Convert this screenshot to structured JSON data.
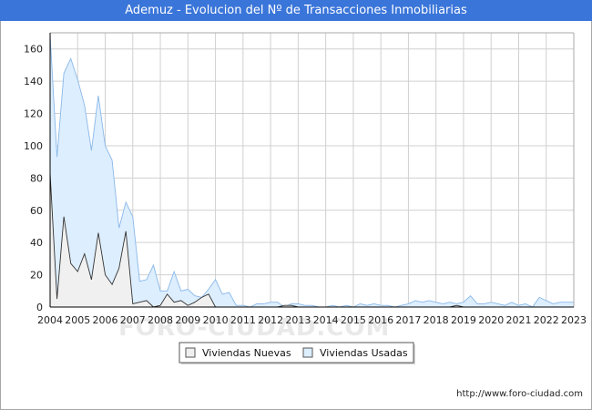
{
  "title": "Ademuz - Evolucion del Nº de Transacciones Inmobiliarias",
  "footer_url": "http://www.foro-ciudad.com",
  "watermark": "FORO-CIUDAD.COM",
  "colors": {
    "title_bg": "#3a75d9",
    "nuevas_fill": "#f0f0f0",
    "nuevas_line": "#333333",
    "usadas_fill": "#ddeeff",
    "usadas_line": "#8ab8e8",
    "grid": "#d0d0d0"
  },
  "chart_data": {
    "type": "area",
    "title": "Ademuz - Evolucion del Nº de Transacciones Inmobiliarias",
    "xlabel": "",
    "ylabel": "",
    "xlim": [
      2004,
      2023
    ],
    "ylim": [
      0,
      170
    ],
    "x_ticks": [
      "2004",
      "2005",
      "2006",
      "2007",
      "2008",
      "2009",
      "2010",
      "2011",
      "2012",
      "2013",
      "2014",
      "2015",
      "2016",
      "2017",
      "2018",
      "2019",
      "2020",
      "2021",
      "2022",
      "2023"
    ],
    "y_ticks": [
      0,
      20,
      40,
      60,
      80,
      100,
      120,
      140,
      160
    ],
    "grid": true,
    "legend": "bottom-center",
    "x": [
      2004.0,
      2004.25,
      2004.5,
      2004.75,
      2005.0,
      2005.25,
      2005.5,
      2005.75,
      2006.0,
      2006.25,
      2006.5,
      2006.75,
      2007.0,
      2007.25,
      2007.5,
      2007.75,
      2008.0,
      2008.25,
      2008.5,
      2008.75,
      2009.0,
      2009.25,
      2009.5,
      2009.75,
      2010.0,
      2010.25,
      2010.5,
      2010.75,
      2011.0,
      2011.25,
      2011.5,
      2011.75,
      2012.0,
      2012.25,
      2012.5,
      2012.75,
      2013.0,
      2013.25,
      2013.5,
      2013.75,
      2014.0,
      2014.25,
      2014.5,
      2014.75,
      2015.0,
      2015.25,
      2015.5,
      2015.75,
      2016.0,
      2016.25,
      2016.5,
      2016.75,
      2017.0,
      2017.25,
      2017.5,
      2017.75,
      2018.0,
      2018.25,
      2018.5,
      2018.75,
      2019.0,
      2019.25,
      2019.5,
      2019.75,
      2020.0,
      2020.25,
      2020.5,
      2020.75,
      2021.0,
      2021.25,
      2021.5,
      2021.75,
      2022.0,
      2022.25,
      2022.5,
      2022.75,
      2023.0
    ],
    "series": [
      {
        "name": "Viviendas Nuevas",
        "values": [
          83,
          5,
          56,
          27,
          22,
          33,
          17,
          46,
          20,
          14,
          24,
          47,
          2,
          3,
          4,
          0,
          1,
          8,
          3,
          4,
          1,
          3,
          6,
          8,
          0,
          0,
          0,
          0,
          0,
          0,
          0,
          0,
          0,
          0,
          1,
          1,
          0,
          0,
          0,
          0,
          0,
          0,
          0,
          0,
          0,
          0,
          0,
          0,
          0,
          0,
          0,
          0,
          0,
          0,
          0,
          0,
          0,
          0,
          0,
          1,
          0,
          0,
          0,
          0,
          0,
          0,
          0,
          0,
          0,
          0,
          0,
          0,
          0,
          0,
          0,
          0,
          0
        ]
      },
      {
        "name": "Viviendas Usadas",
        "values": [
          169,
          93,
          145,
          154,
          141,
          125,
          97,
          131,
          100,
          91,
          49,
          65,
          56,
          16,
          17,
          26,
          10,
          10,
          22,
          10,
          11,
          7,
          6,
          11,
          17,
          8,
          9,
          1,
          1,
          0,
          2,
          2,
          3,
          3,
          0,
          2,
          2,
          1,
          1,
          0,
          0,
          1,
          0,
          1,
          0,
          2,
          1,
          2,
          1,
          1,
          0,
          1,
          2,
          4,
          3,
          4,
          3,
          2,
          3,
          2,
          3,
          7,
          2,
          2,
          3,
          2,
          1,
          3,
          1,
          2,
          0,
          6,
          4,
          2,
          3,
          3,
          3
        ]
      }
    ]
  }
}
